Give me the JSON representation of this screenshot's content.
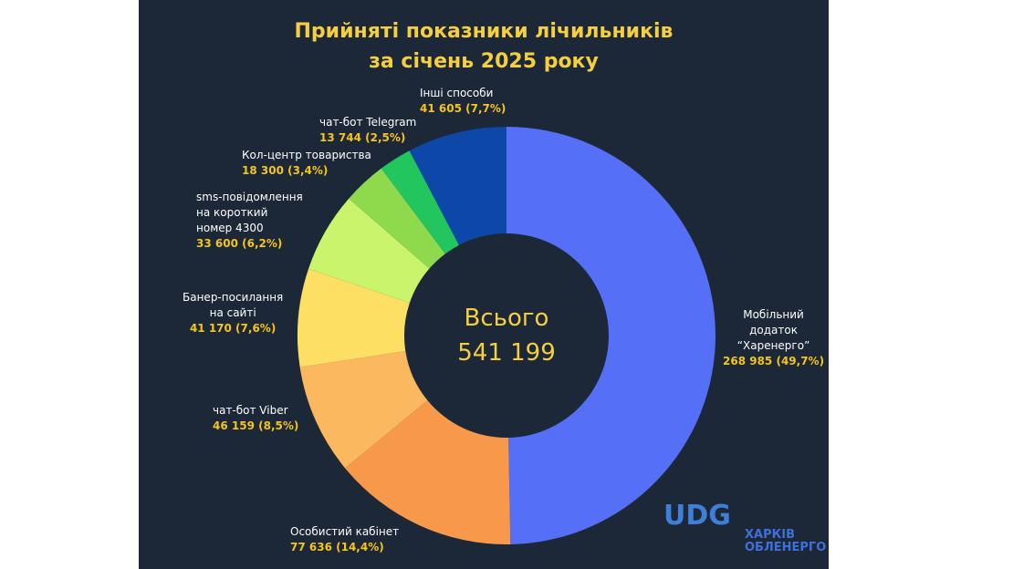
{
  "chart_data": {
    "type": "pie",
    "donut": true,
    "title": "Прийняті показники лічильників\nза січень 2025 року",
    "categories": [
      "Мобільний\nдодаток\n“Харенерго”",
      "Особистий кабінет",
      "чат-бот Viber",
      "Банер-посилання\nна сайті",
      "sms-повідомлення\nна короткий\nномер 4300",
      "Кол-центр товариства",
      "чат-бот Telegram",
      "Інші способи"
    ],
    "values": [
      268985,
      77636,
      46159,
      41170,
      33600,
      18300,
      13744,
      41605
    ],
    "value_labels": [
      "268 985 (49,7%)",
      "77 636 (14,4%)",
      "46 159 (8,5%)",
      "41 170 (7,6%)",
      "33 600 (6,2%)",
      "18 300 (3,4%)",
      "13 744 (2,5%)",
      "41 605 (7,7%)"
    ],
    "colors": [
      "#5570f7",
      "#f7984a",
      "#fbb85e",
      "#fddf63",
      "#c9f46c",
      "#8fd94c",
      "#22c55e",
      "#0d47a8"
    ],
    "total_label": "Всього",
    "total": {
      "value": 541199,
      "label": "541 199"
    }
  },
  "logo": {
    "mark": "UDG",
    "text": "ХАРКІВ\nОБЛЕНЕРГО"
  }
}
